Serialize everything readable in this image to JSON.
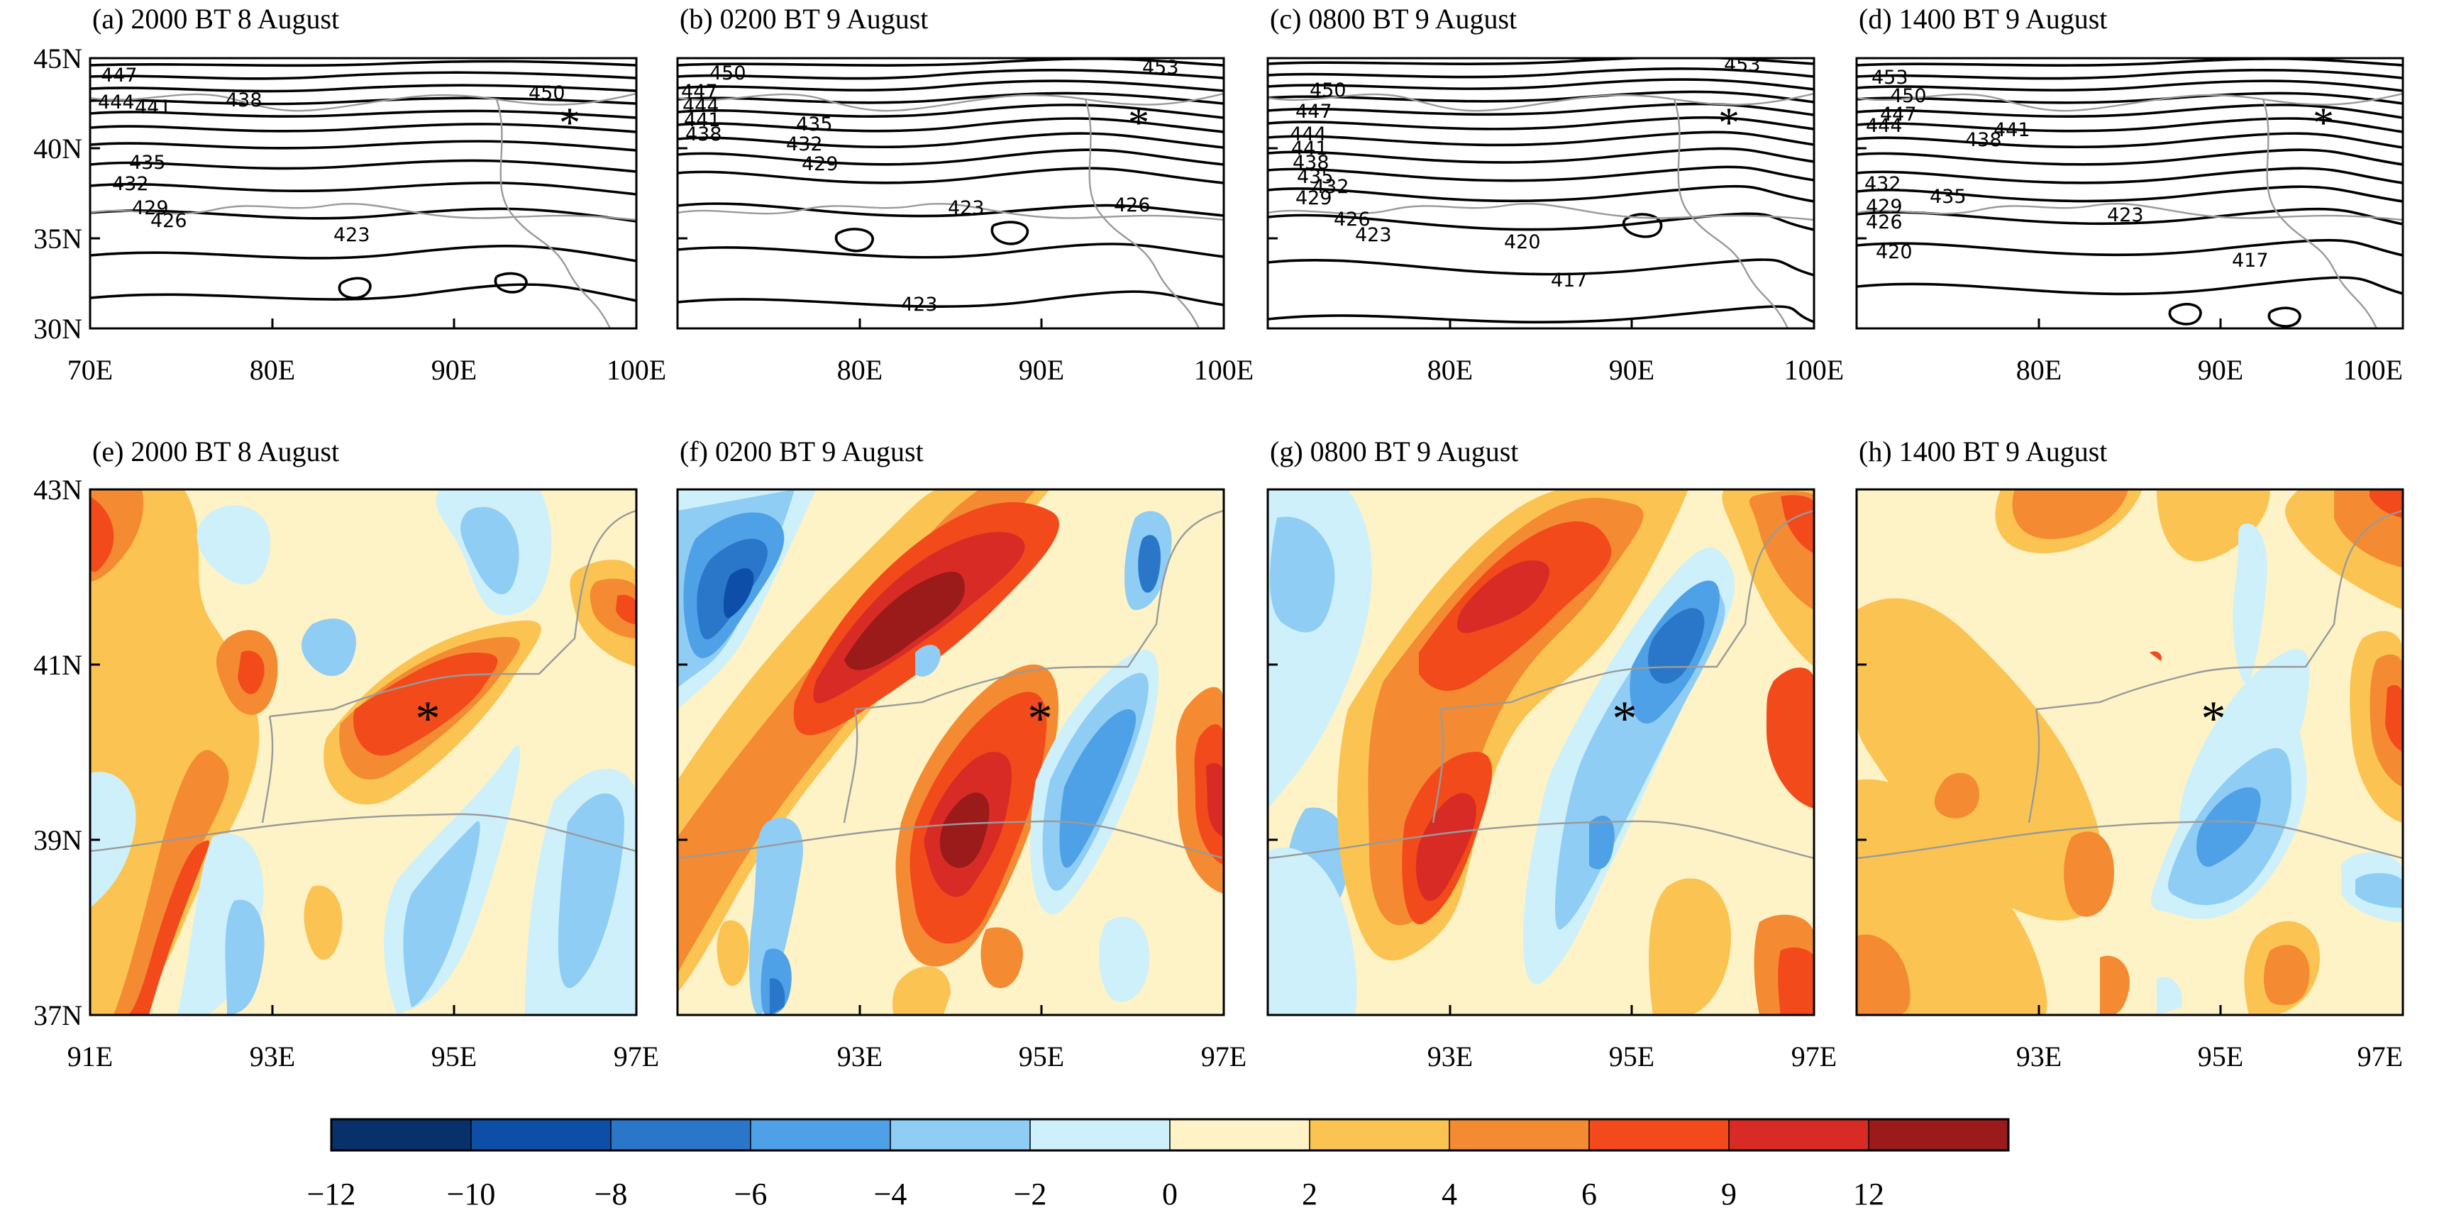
{
  "top_row": {
    "panels": [
      {
        "label": "(a) 2000 BT 8 August",
        "contour_labels": [
          "447",
          "444",
          "441",
          "438",
          "450",
          "435",
          "432",
          "429",
          "426",
          "423"
        ]
      },
      {
        "label": "(b) 0200 BT 9 August",
        "contour_labels": [
          "450",
          "447",
          "444",
          "441",
          "438",
          "435",
          "432",
          "429",
          "453",
          "423",
          "426",
          "423"
        ]
      },
      {
        "label": "(c) 0800 BT 9 August",
        "contour_labels": [
          "453",
          "450",
          "447",
          "444",
          "441",
          "438",
          "435",
          "432",
          "429",
          "426",
          "423",
          "420",
          "417"
        ]
      },
      {
        "label": "(d) 1400 BT 9 August",
        "contour_labels": [
          "453",
          "450",
          "447",
          "444",
          "441",
          "438",
          "435",
          "432",
          "429",
          "426",
          "423",
          "420",
          "417"
        ]
      }
    ],
    "y_ticks": [
      "45N",
      "40N",
      "35N",
      "30N"
    ],
    "x_ticks_first": [
      "70E",
      "80E",
      "90E",
      "100E"
    ],
    "x_ticks_other": [
      "80E",
      "90E",
      "100E"
    ]
  },
  "bottom_row": {
    "panels": [
      {
        "label": "(e) 2000 BT 8 August"
      },
      {
        "label": "(f) 0200 BT 9 August"
      },
      {
        "label": "(g) 0800 BT 9 August"
      },
      {
        "label": "(h) 1400 BT 9 August"
      }
    ],
    "y_ticks": [
      "43N",
      "41N",
      "39N",
      "37N"
    ],
    "x_ticks_first": [
      "91E",
      "93E",
      "95E",
      "97E"
    ],
    "x_ticks_other": [
      "93E",
      "95E",
      "97E"
    ]
  },
  "station_marker": {
    "symbol": "*",
    "lon": 94.9,
    "lat": 40.4
  },
  "colorbar": {
    "tick_labels": [
      "−12",
      "−10",
      "−8",
      "−6",
      "−4",
      "−2",
      "0",
      "2",
      "4",
      "6",
      "9",
      "12"
    ],
    "colors": [
      "#08306b",
      "#0d4fa8",
      "#2a77c9",
      "#4ea1e6",
      "#8fcdf5",
      "#cdf0fb",
      "#fdf3c7",
      "#fbc452",
      "#f48a32",
      "#f24a1a",
      "#d92b25",
      "#9b1b1b"
    ]
  }
}
